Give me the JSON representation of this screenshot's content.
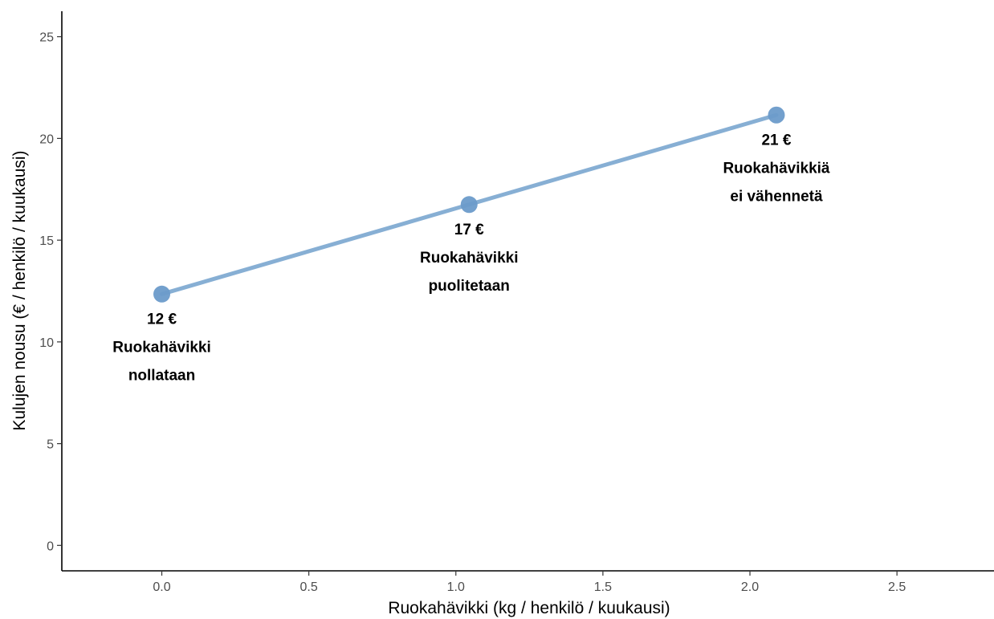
{
  "chart_data": {
    "type": "line",
    "title": "",
    "xlabel": "Ruokahävikki (kg / henkilö / kuukausi)",
    "ylabel": "Kulujen nousu (€ / henkilö / kuukausi)",
    "xlim": [
      -0.34,
      2.83
    ],
    "ylim": [
      -1.25,
      26.25
    ],
    "xticks": [
      0.0,
      0.5,
      1.0,
      1.5,
      2.0,
      2.5
    ],
    "xtick_labels": [
      "0.0",
      "0.5",
      "1.0",
      "1.5",
      "2.0",
      "2.5"
    ],
    "yticks": [
      0,
      5,
      10,
      15,
      20,
      25
    ],
    "ytick_labels": [
      "0",
      "5",
      "10",
      "15",
      "20",
      "25"
    ],
    "grid": false,
    "color": "#7aa6cf",
    "series": [
      {
        "x": [
          0.0,
          1.045,
          2.09
        ],
        "y": [
          12.35,
          16.75,
          21.15
        ],
        "labels": [
          [
            "12 €",
            "Ruokahävikki",
            "nollataan"
          ],
          [
            "17 €",
            "Ruokahävikki",
            "puolitetaan"
          ],
          [
            "21 €",
            "Ruokahävikkiä",
            "ei vähennetä"
          ]
        ]
      }
    ]
  }
}
